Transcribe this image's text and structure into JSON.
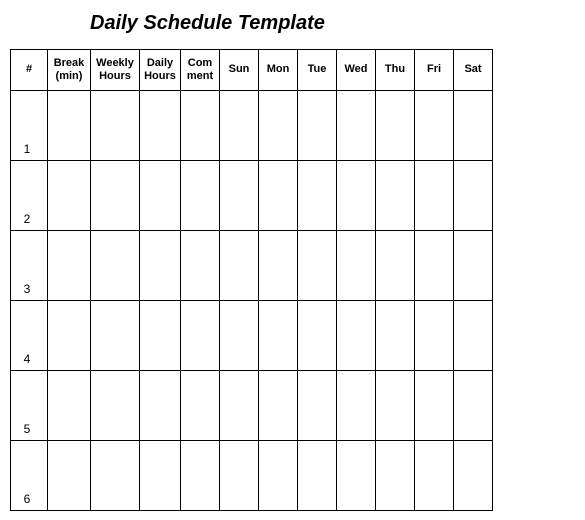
{
  "title": "Daily Schedule Template",
  "columns": [
    "#",
    "Break (min)",
    "Weekly Hours",
    "Daily Hours",
    "Com ment",
    "Sun",
    "Mon",
    "Tue",
    "Wed",
    "Thu",
    "Fri",
    "Sat"
  ],
  "rows": [
    [
      "1",
      "",
      "",
      "",
      "",
      "",
      "",
      "",
      "",
      "",
      "",
      ""
    ],
    [
      "2",
      "",
      "",
      "",
      "",
      "",
      "",
      "",
      "",
      "",
      "",
      ""
    ],
    [
      "3",
      "",
      "",
      "",
      "",
      "",
      "",
      "",
      "",
      "",
      "",
      ""
    ],
    [
      "4",
      "",
      "",
      "",
      "",
      "",
      "",
      "",
      "",
      "",
      "",
      ""
    ],
    [
      "5",
      "",
      "",
      "",
      "",
      "",
      "",
      "",
      "",
      "",
      "",
      ""
    ],
    [
      "6",
      "",
      "",
      "",
      "",
      "",
      "",
      "",
      "",
      "",
      "",
      ""
    ]
  ]
}
